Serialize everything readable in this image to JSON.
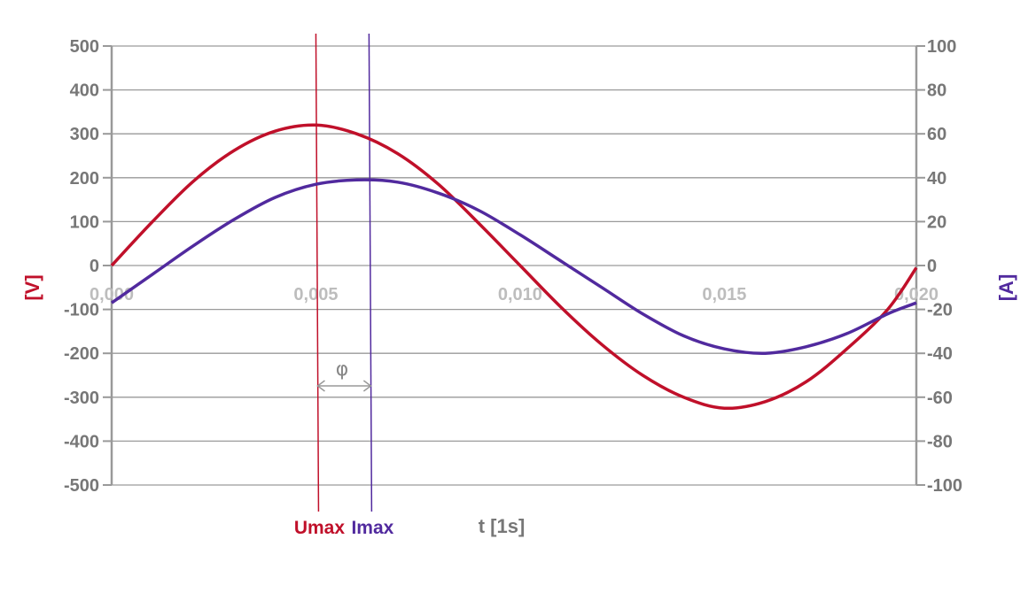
{
  "chart_data": {
    "type": "line",
    "title": "",
    "xlabel": "t [1s]",
    "ylabel_left": "[V]",
    "ylabel_right": "[A]",
    "xlim": [
      0,
      0.0197
    ],
    "ylim_left": [
      -500,
      500
    ],
    "ylim_right": [
      -100,
      100
    ],
    "grid": true,
    "x_ticks": [
      "0,000",
      "0,005",
      "0,010",
      "0,015",
      "0,020"
    ],
    "x_tick_values": [
      0,
      0.005,
      0.01,
      0.015,
      0.0197
    ],
    "y_ticks_left": [
      "500",
      "400",
      "300",
      "200",
      "100",
      "0",
      "-100",
      "-200",
      "-300",
      "-400",
      "-500"
    ],
    "y_tick_values_left": [
      500,
      400,
      300,
      200,
      100,
      0,
      -100,
      -200,
      -300,
      -400,
      -500
    ],
    "y_ticks_right": [
      "100",
      "80",
      "60",
      "40",
      "20",
      "0",
      "-20",
      "-40",
      "-60",
      "-80",
      "-100"
    ],
    "y_tick_values_right": [
      100,
      80,
      60,
      40,
      20,
      0,
      -20,
      -40,
      -60,
      -80,
      -100
    ],
    "series": [
      {
        "axis": "left",
        "color": "#c0102a",
        "x": [
          0,
          0.001,
          0.002,
          0.003,
          0.004,
          0.005,
          0.006,
          0.007,
          0.008,
          0.009,
          0.01,
          0.011,
          0.012,
          0.013,
          0.014,
          0.015,
          0.016,
          0.017,
          0.018,
          0.019,
          0.0197
        ],
        "y": [
          0,
          100,
          192,
          262,
          306,
          320,
          300,
          255,
          185,
          95,
          0,
          -95,
          -180,
          -250,
          -300,
          -325,
          -310,
          -265,
          -190,
          -100,
          -5
        ]
      },
      {
        "axis": "right",
        "color": "#512a9e",
        "x": [
          0,
          0.001,
          0.002,
          0.003,
          0.004,
          0.005,
          0.006,
          0.007,
          0.008,
          0.009,
          0.01,
          0.011,
          0.012,
          0.013,
          0.014,
          0.015,
          0.016,
          0.017,
          0.018,
          0.019,
          0.0197
        ],
        "y": [
          -17,
          -4,
          9,
          21,
          31,
          37,
          39,
          38,
          33,
          25,
          14,
          2,
          -10,
          -22,
          -32,
          -38,
          -40,
          -37,
          -31,
          -22,
          -17
        ]
      }
    ],
    "markers": [
      {
        "label": "Umax",
        "x": 0.005,
        "color": "#c0102a"
      },
      {
        "label": "Imax",
        "x": 0.0063,
        "color": "#512a9e"
      }
    ],
    "annotation": {
      "symbol": "φ"
    }
  }
}
